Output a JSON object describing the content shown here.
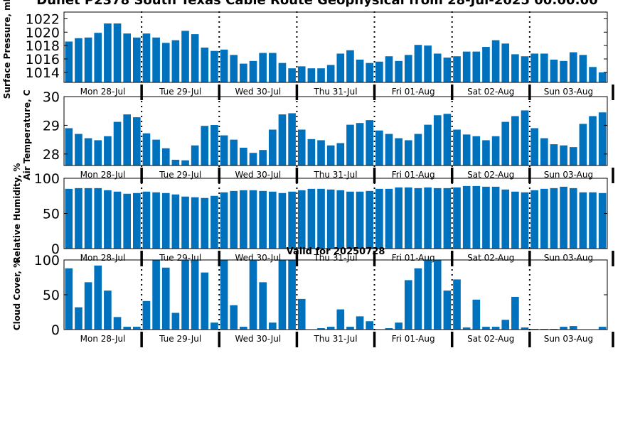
{
  "page": {
    "title": "Dunet P2378 South Texas Cable Route Geophysical from 28-Jul-2025 00:00:00",
    "valid_label": "Valid for 20250728"
  },
  "colors": {
    "bar": "#0072BD"
  },
  "chart_data": [
    {
      "type": "bar",
      "title": "",
      "ylabel": "Surface Pressure, mb",
      "ylim": [
        1012.5,
        1023
      ],
      "yticks": [
        "1014",
        "1016",
        "1018",
        "1020",
        "1022"
      ],
      "xticklabels": [
        "Mon 28-Jul",
        "Tue 29-Jul",
        "Wed 30-Jul",
        "Thu 31-Jul",
        "Fri 01-Aug",
        "Sat 02-Aug",
        "Sun 03-Aug"
      ],
      "x_unit": "hours from 28-Jul-2025 00:00",
      "x": [
        0,
        3,
        6,
        9,
        12,
        15,
        18,
        21,
        24,
        27,
        30,
        33,
        36,
        39,
        42,
        45,
        48,
        51,
        54,
        57,
        60,
        63,
        66,
        69,
        72,
        75,
        78,
        81,
        84,
        87,
        90,
        93,
        96,
        99,
        102,
        105,
        108,
        111,
        114,
        117,
        120,
        123,
        126,
        129,
        132,
        135,
        138,
        141,
        144,
        147,
        150,
        153,
        156,
        159,
        162,
        165
      ],
      "values": [
        1018.6,
        1019.1,
        1019.2,
        1019.9,
        1021.3,
        1021.3,
        1019.8,
        1019.2,
        1019.8,
        1019.2,
        1018.4,
        1018.8,
        1020.2,
        1019.7,
        1017.7,
        1017.2,
        1017.4,
        1016.6,
        1015.3,
        1015.7,
        1016.9,
        1016.9,
        1015.4,
        1014.6,
        1014.9,
        1014.6,
        1014.6,
        1015.1,
        1016.8,
        1017.3,
        1015.9,
        1015.4,
        1015.6,
        1016.4,
        1015.7,
        1016.6,
        1018.1,
        1018.0,
        1016.8,
        1016.2,
        1016.4,
        1017.1,
        1017.1,
        1017.8,
        1018.8,
        1018.3,
        1016.7,
        1016.4,
        1016.8,
        1016.8,
        1015.9,
        1015.7,
        1017.0,
        1016.6,
        1014.8,
        1014.0
      ]
    },
    {
      "type": "bar",
      "title": "",
      "ylabel": "Air Temperature, C",
      "ylim": [
        27.6,
        30
      ],
      "yticks": [
        "28",
        "29",
        "30"
      ],
      "xticklabels": [
        "Mon 28-Jul",
        "Tue 29-Jul",
        "Wed 30-Jul",
        "Thu 31-Jul",
        "Fri 01-Aug",
        "Sat 02-Aug",
        "Sun 03-Aug"
      ],
      "x_unit": "hours from 28-Jul-2025 00:00",
      "x": [
        0,
        3,
        6,
        9,
        12,
        15,
        18,
        21,
        24,
        27,
        30,
        33,
        36,
        39,
        42,
        45,
        48,
        51,
        54,
        57,
        60,
        63,
        66,
        69,
        72,
        75,
        78,
        81,
        84,
        87,
        90,
        93,
        96,
        99,
        102,
        105,
        108,
        111,
        114,
        117,
        120,
        123,
        126,
        129,
        132,
        135,
        138,
        141,
        144,
        147,
        150,
        153,
        156,
        159,
        162,
        165
      ],
      "values": [
        28.9,
        28.7,
        28.55,
        28.48,
        28.62,
        29.12,
        29.38,
        29.28,
        28.72,
        28.5,
        28.2,
        27.8,
        27.78,
        28.3,
        28.98,
        29.01,
        28.65,
        28.5,
        28.22,
        28.04,
        28.14,
        28.85,
        29.38,
        29.42,
        28.85,
        28.52,
        28.48,
        28.3,
        28.38,
        29.02,
        29.08,
        29.18,
        28.82,
        28.7,
        28.55,
        28.48,
        28.7,
        29.02,
        29.35,
        29.4,
        28.85,
        28.68,
        28.62,
        28.48,
        28.62,
        29.12,
        29.32,
        29.52,
        28.9,
        28.55,
        28.34,
        28.3,
        28.24,
        29.05,
        29.32,
        29.45
      ]
    },
    {
      "type": "bar",
      "title": "",
      "ylabel": "Relative Humidity, %",
      "ylim": [
        0,
        100
      ],
      "yticks": [
        "0",
        "50",
        "100"
      ],
      "xticklabels": [
        "Mon 28-Jul",
        "Tue 29-Jul",
        "Wed 30-Jul",
        "Thu 31-Jul",
        "Fri 01-Aug",
        "Sat 02-Aug",
        "Sun 03-Aug"
      ],
      "x_unit": "hours from 28-Jul-2025 00:00",
      "x": [
        0,
        3,
        6,
        9,
        12,
        15,
        18,
        21,
        24,
        27,
        30,
        33,
        36,
        39,
        42,
        45,
        48,
        51,
        54,
        57,
        60,
        63,
        66,
        69,
        72,
        75,
        78,
        81,
        84,
        87,
        90,
        93,
        96,
        99,
        102,
        105,
        108,
        111,
        114,
        117,
        120,
        123,
        126,
        129,
        132,
        135,
        138,
        141,
        144,
        147,
        150,
        153,
        156,
        159,
        162,
        165
      ],
      "values": [
        85,
        86,
        86,
        86,
        83,
        81,
        78,
        79,
        81,
        80,
        79,
        77,
        74,
        73,
        72,
        75,
        80,
        82,
        83,
        83,
        82,
        81,
        79,
        81,
        83,
        85,
        85,
        84,
        83,
        81,
        81,
        82,
        85,
        85,
        87,
        87,
        86,
        87,
        86,
        86,
        87,
        89,
        89,
        88,
        88,
        84,
        81,
        80,
        83,
        85,
        86,
        88,
        86,
        80,
        80,
        79
      ]
    },
    {
      "type": "bar",
      "title": "",
      "ylabel": "Cloud Cover, %",
      "ylim": [
        0,
        100
      ],
      "yticks": [
        "0",
        "50",
        "100"
      ],
      "xticklabels": [
        "Mon 28-Jul",
        "Tue 29-Jul",
        "Wed 30-Jul",
        "Thu 31-Jul",
        "Fri 01-Aug",
        "Sat 02-Aug",
        "Sun 03-Aug"
      ],
      "x_unit": "hours from 28-Jul-2025 00:00",
      "x": [
        0,
        3,
        6,
        9,
        12,
        15,
        18,
        21,
        24,
        27,
        30,
        33,
        36,
        39,
        42,
        45,
        48,
        51,
        54,
        57,
        60,
        63,
        66,
        69,
        72,
        75,
        78,
        81,
        84,
        87,
        90,
        93,
        96,
        99,
        102,
        105,
        108,
        111,
        114,
        117,
        120,
        123,
        126,
        129,
        132,
        135,
        138,
        141,
        144,
        147,
        150,
        153,
        156,
        159,
        162,
        165
      ],
      "values": [
        88,
        32,
        68,
        92,
        56,
        18,
        4,
        4,
        41,
        100,
        89,
        24,
        100,
        100,
        82,
        10,
        100,
        35,
        4,
        100,
        68,
        10,
        100,
        100,
        44,
        0,
        2,
        4,
        29,
        4,
        19,
        12,
        0,
        2,
        10,
        71,
        88,
        100,
        100,
        56,
        72,
        3,
        43,
        4,
        4,
        14,
        47,
        3,
        1,
        1,
        1,
        4,
        5,
        0,
        0,
        4
      ]
    }
  ]
}
